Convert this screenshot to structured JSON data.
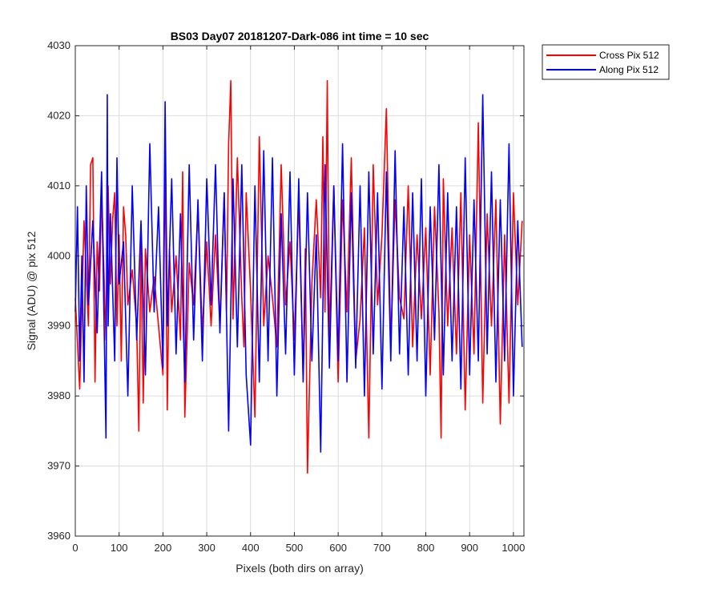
{
  "chart_data": {
    "type": "line",
    "title": "BS03 Day07 20181207-Dark-086 int time = 10 sec",
    "xlabel": "Pixels (both dirs on array)",
    "ylabel": "Signal (ADU) @ pix 512",
    "xlim": [
      0,
      1024
    ],
    "ylim": [
      3960,
      4030
    ],
    "xticks": [
      0,
      100,
      200,
      300,
      400,
      500,
      600,
      700,
      800,
      900,
      1000
    ],
    "yticks": [
      3960,
      3970,
      3980,
      3990,
      4000,
      4010,
      4020,
      4030
    ],
    "grid": true,
    "legend_position": "outside-top-right",
    "series": [
      {
        "name": "Cross Pix 512",
        "color": "#ff0000",
        "x": [
          0,
          10,
          20,
          30,
          35,
          40,
          45,
          50,
          55,
          60,
          70,
          75,
          80,
          85,
          90,
          95,
          100,
          105,
          110,
          115,
          120,
          130,
          140,
          145,
          150,
          155,
          160,
          170,
          180,
          190,
          200,
          205,
          210,
          215,
          220,
          230,
          240,
          245,
          250,
          260,
          270,
          280,
          290,
          300,
          310,
          320,
          330,
          340,
          345,
          350,
          355,
          360,
          370,
          380,
          385,
          390,
          400,
          410,
          420,
          430,
          440,
          450,
          460,
          470,
          480,
          490,
          500,
          510,
          520,
          525,
          530,
          540,
          550,
          560,
          565,
          570,
          575,
          580,
          590,
          600,
          610,
          620,
          630,
          640,
          650,
          660,
          670,
          680,
          690,
          700,
          710,
          720,
          730,
          740,
          750,
          760,
          770,
          780,
          790,
          800,
          810,
          820,
          830,
          835,
          840,
          850,
          860,
          870,
          880,
          890,
          900,
          910,
          920,
          930,
          940,
          950,
          960,
          970,
          980,
          990,
          1000,
          1010,
          1020
        ],
        "y": [
          3994,
          3981,
          4005,
          3990,
          4013,
          4014,
          3982,
          4002,
          3995,
          4009,
          3988,
          4010,
          3996,
          4005,
          4009,
          3990,
          4003,
          3985,
          4007,
          4003,
          3993,
          3998,
          3990,
          3975,
          4002,
          3979,
          4001,
          3992,
          3997,
          3990,
          3983,
          4015,
          3978,
          4001,
          3992,
          4000,
          3988,
          4012,
          3977,
          3999,
          3993,
          4007,
          3989,
          4002,
          3990,
          4003,
          3990,
          4009,
          3992,
          4016,
          4025,
          3991,
          4014,
          3994,
          3987,
          4009,
          3995,
          3977,
          4017,
          3990,
          4000,
          3994,
          3987,
          4013,
          3993,
          4002,
          3988,
          4008,
          3983,
          4001,
          3969,
          3996,
          4008,
          3994,
          4017,
          3992,
          4025,
          3988,
          4010,
          3982,
          4008,
          3992,
          4014,
          3985,
          3991,
          4004,
          3974,
          4013,
          3993,
          4003,
          4021,
          3987,
          4008,
          3994,
          3991,
          4010,
          3987,
          4003,
          3991,
          4004,
          3983,
          4007,
          3992,
          3974,
          4011,
          3990,
          4004,
          3986,
          4009,
          3978,
          4003,
          3986,
          4019,
          3979,
          4006,
          3990,
          4008,
          3976,
          4003,
          3979,
          4009,
          3993,
          4005
        ]
      },
      {
        "name": "Along Pix 512",
        "color": "#0000ff",
        "x": [
          0,
          5,
          10,
          15,
          20,
          25,
          30,
          40,
          50,
          60,
          70,
          73,
          75,
          80,
          90,
          95,
          100,
          110,
          120,
          130,
          140,
          150,
          160,
          170,
          180,
          190,
          200,
          205,
          210,
          220,
          230,
          240,
          250,
          260,
          270,
          280,
          290,
          300,
          310,
          320,
          330,
          340,
          350,
          360,
          370,
          380,
          390,
          400,
          410,
          420,
          430,
          440,
          450,
          460,
          470,
          480,
          490,
          500,
          510,
          520,
          530,
          540,
          550,
          560,
          570,
          580,
          590,
          600,
          610,
          620,
          630,
          640,
          650,
          660,
          670,
          680,
          690,
          700,
          710,
          720,
          730,
          740,
          750,
          760,
          770,
          780,
          790,
          800,
          810,
          820,
          830,
          840,
          850,
          860,
          870,
          880,
          890,
          900,
          910,
          920,
          930,
          940,
          950,
          960,
          970,
          980,
          990,
          1000,
          1010,
          1020
        ],
        "y": [
          3992,
          4007,
          3985,
          4000,
          3982,
          4010,
          3993,
          4005,
          3989,
          4012,
          3974,
          4023,
          3990,
          4006,
          3985,
          4014,
          3996,
          4002,
          3980,
          4010,
          3988,
          4005,
          3983,
          4016,
          3992,
          4007,
          3984,
          4022,
          3990,
          4011,
          3986,
          4006,
          3982,
          4013,
          3988,
          4008,
          3985,
          4011,
          3993,
          4013,
          3989,
          4009,
          3975,
          4011,
          3987,
          4013,
          3983,
          3973,
          4010,
          3982,
          4015,
          3985,
          4014,
          3980,
          4006,
          3986,
          4012,
          3983,
          4011,
          3982,
          4009,
          3985,
          4003,
          3972,
          4013,
          3984,
          4010,
          3985,
          4016,
          3982,
          4009,
          3984,
          4010,
          3980,
          4012,
          3986,
          4009,
          3981,
          4012,
          3985,
          4015,
          3986,
          4007,
          3983,
          4009,
          3985,
          4011,
          3980,
          4007,
          3988,
          4013,
          3983,
          4009,
          3985,
          4007,
          3981,
          4014,
          3983,
          4008,
          3985,
          4023,
          3986,
          4012,
          3982,
          4008,
          3985,
          4016,
          3980,
          4005,
          3987
        ]
      }
    ]
  }
}
